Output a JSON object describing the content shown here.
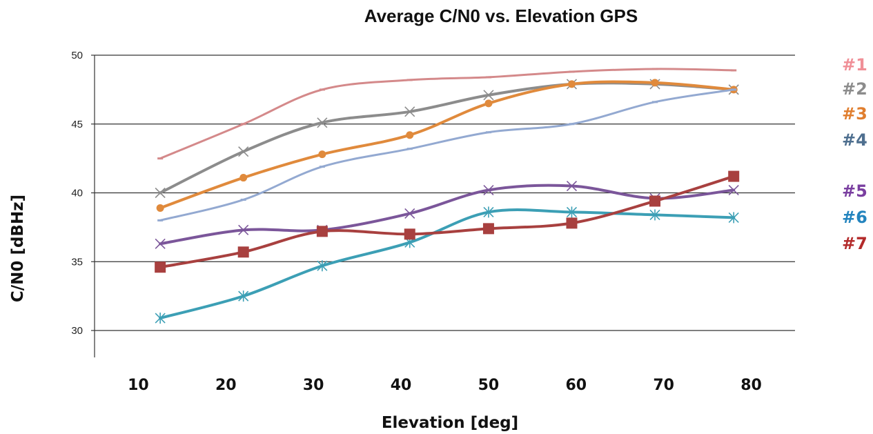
{
  "chart_data": {
    "type": "line",
    "title": "Average C/N0 vs. Elevation GPS",
    "xlabel": "Elevation [deg]",
    "ylabel": "C/N0 [dBHz]",
    "xlim": [
      5,
      85
    ],
    "ylim": [
      30,
      50
    ],
    "xticks": [
      "10",
      "20",
      "30",
      "40",
      "50",
      "60",
      "70",
      "80"
    ],
    "yticks": [
      "30",
      "35",
      "40",
      "45",
      "50"
    ],
    "grid": "horizontal",
    "legend_position": "right",
    "x": [
      12.5,
      22,
      31,
      41,
      50,
      59.5,
      69,
      78
    ],
    "series": [
      {
        "name": "#1",
        "color": "#D4898A",
        "marker": "dash",
        "values": [
          42.5,
          45.0,
          47.5,
          48.2,
          48.4,
          48.8,
          49.0,
          48.9
        ]
      },
      {
        "name": "#2",
        "color": "#8C8C8C",
        "marker": "x",
        "values": [
          40.0,
          43.0,
          45.1,
          45.9,
          47.1,
          47.9,
          47.9,
          47.5
        ]
      },
      {
        "name": "#3",
        "color": "#E08A3C",
        "marker": "circle",
        "values": [
          38.9,
          41.1,
          42.8,
          44.2,
          46.5,
          47.9,
          48.0,
          47.5
        ]
      },
      {
        "name": "#4",
        "color": "#93A9D1",
        "marker": "dash",
        "values": [
          38.0,
          39.5,
          41.9,
          43.2,
          44.4,
          45.0,
          46.6,
          47.5
        ]
      },
      {
        "name": "#5",
        "color": "#7B569A",
        "marker": "x",
        "values": [
          36.3,
          37.3,
          37.3,
          38.5,
          40.2,
          40.5,
          39.6,
          40.2
        ]
      },
      {
        "name": "#6",
        "color": "#3C9FB5",
        "marker": "asterisk",
        "values": [
          30.9,
          32.5,
          34.7,
          36.4,
          38.6,
          38.6,
          38.4,
          38.2
        ]
      },
      {
        "name": "#7",
        "color": "#A8403F",
        "marker": "square",
        "values": [
          34.6,
          35.7,
          37.2,
          37.0,
          37.4,
          37.8,
          39.4,
          41.2
        ]
      }
    ],
    "legend_colors": [
      "#F08F97",
      "#8C8C8C",
      "#E07E2E",
      "#4E6F8F",
      "#7A3FA0",
      "#2384BE",
      "#B32A2A"
    ]
  }
}
